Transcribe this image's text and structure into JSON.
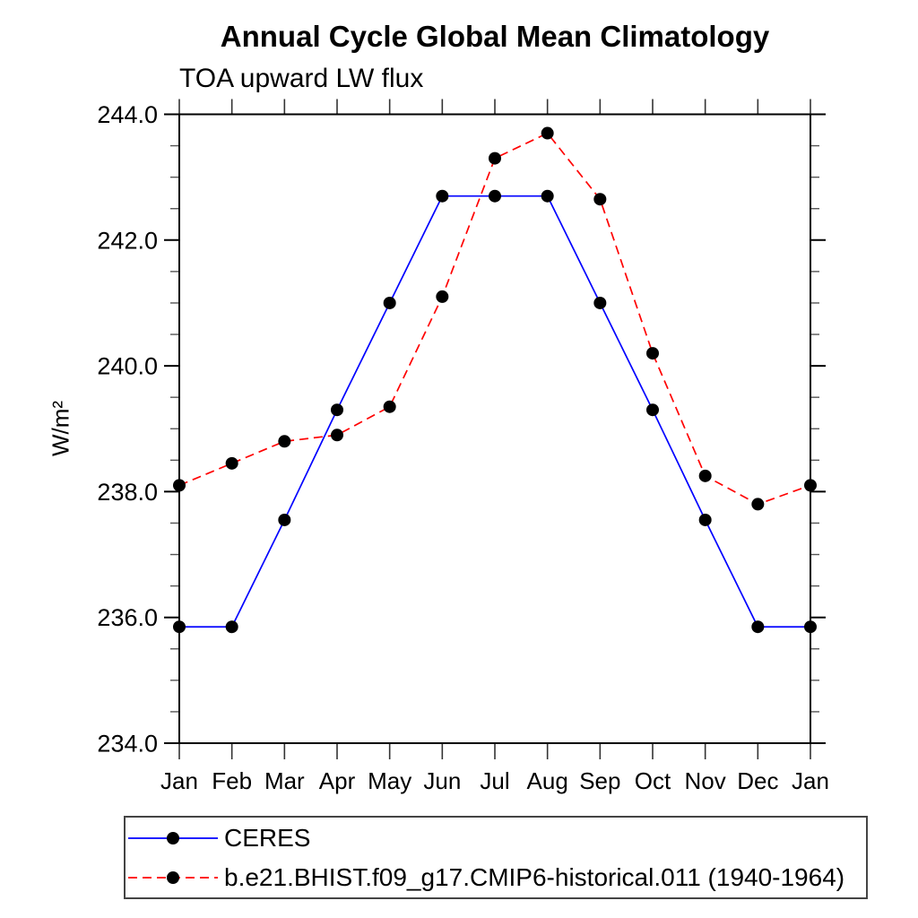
{
  "chart_data": {
    "type": "line",
    "title": "Annual Cycle Global Mean Climatology",
    "subtitle": "TOA upward LW flux",
    "ylabel": "W/m²",
    "xlabel": "",
    "categories": [
      "Jan",
      "Feb",
      "Mar",
      "Apr",
      "May",
      "Jun",
      "Jul",
      "Aug",
      "Sep",
      "Oct",
      "Nov",
      "Dec",
      "Jan"
    ],
    "ylim": [
      234.0,
      244.0
    ],
    "ytick_major_step": 2.0,
    "ytick_minor_step": 0.5,
    "ytick_labels": [
      "234.0",
      "236.0",
      "238.0",
      "240.0",
      "242.0",
      "244.0"
    ],
    "grid": false,
    "legend_position": "bottom-left",
    "marker": {
      "shape": "circle",
      "color": "#000000"
    },
    "series": [
      {
        "name": "CERES",
        "color": "#0000ff",
        "line_style": "solid",
        "values": [
          235.85,
          235.85,
          237.55,
          239.3,
          241.0,
          242.7,
          242.7,
          242.7,
          241.0,
          239.3,
          237.55,
          235.85,
          235.85
        ]
      },
      {
        "name": "b.e21.BHIST.f09_g17.CMIP6-historical.011 (1940-1964)",
        "color": "#ff0000",
        "line_style": "dashed",
        "values": [
          238.1,
          238.45,
          238.8,
          238.9,
          239.35,
          241.1,
          243.3,
          243.7,
          242.65,
          240.2,
          238.25,
          237.8,
          238.1
        ]
      }
    ]
  }
}
